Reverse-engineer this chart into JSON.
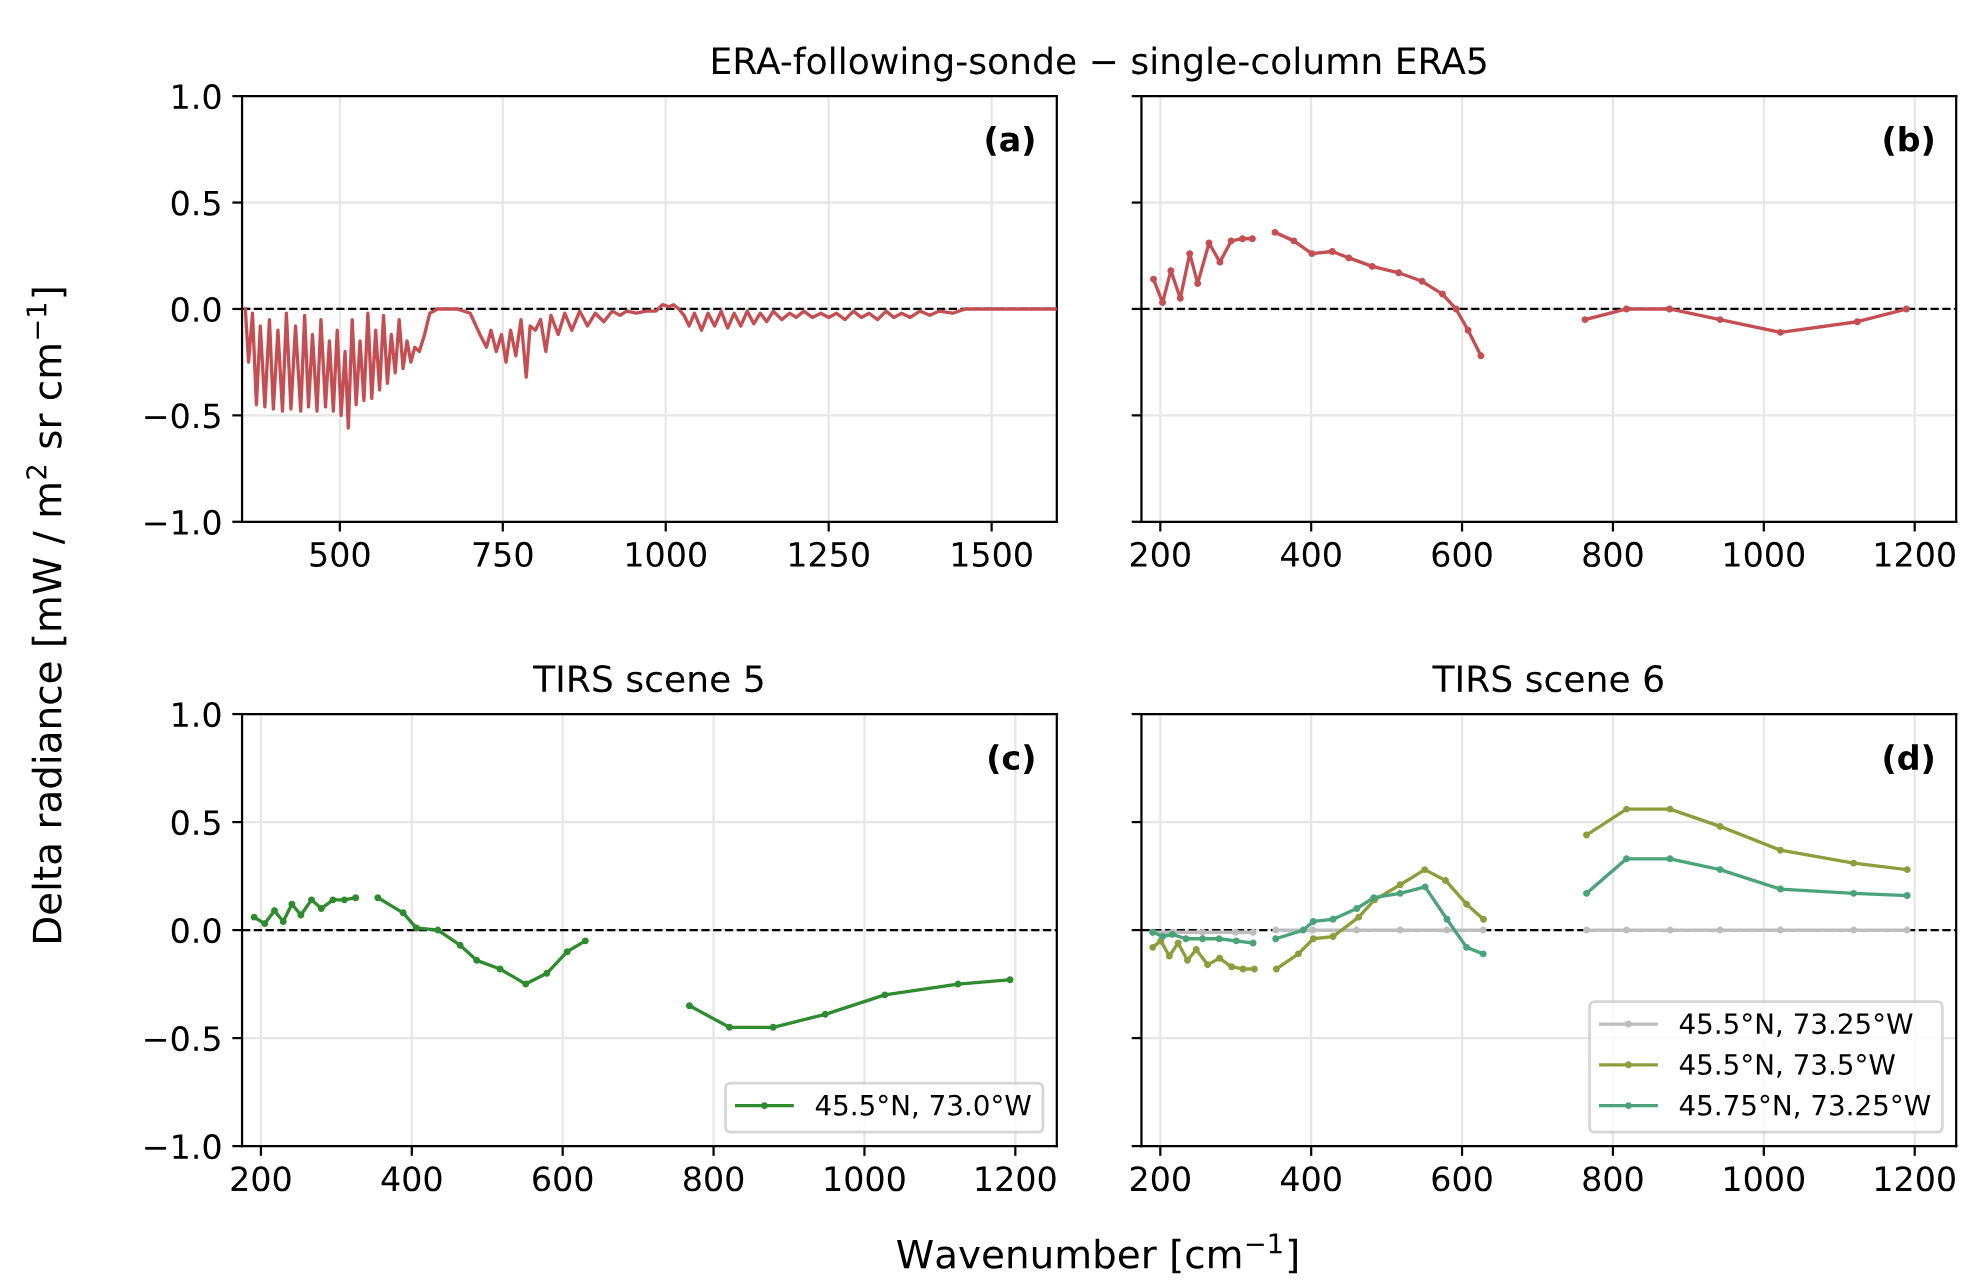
{
  "chart_data": [
    {
      "type": "line",
      "title": "ERA-following-sonde − single-column ERA5",
      "ylabel": "Delta radiance [mW / m$^{2}$ sr cm$^{−1}$]",
      "annotations": [
        "(a)"
      ],
      "xlim": [
        350,
        1600
      ],
      "xticks": [
        500,
        750,
        1000,
        1250,
        1500
      ],
      "ylim": [
        -1.0,
        1.0
      ],
      "yticks": [
        {
          "value": -1.0,
          "label": "−1.0"
        },
        {
          "value": -0.5,
          "label": "−0.5"
        },
        {
          "value": 0.0,
          "label": "0.0"
        },
        {
          "value": 0.5,
          "label": "0.5"
        },
        {
          "value": 1.0,
          "label": "1.0"
        }
      ],
      "grid": true,
      "marker": "none",
      "line_style": "solid",
      "ref_lines": [
        {
          "axis": "y",
          "value": 0,
          "color": "#000000",
          "line_style": "dashed"
        }
      ],
      "series": [
        {
          "color": "#c44e52",
          "x": [
            355,
            360,
            366,
            372,
            378,
            385,
            392,
            398,
            405,
            412,
            418,
            425,
            432,
            440,
            446,
            452,
            458,
            465,
            471,
            478,
            484,
            490,
            496,
            502,
            508,
            513,
            519,
            525,
            531,
            537,
            543,
            549,
            555,
            561,
            567,
            573,
            579,
            585,
            591,
            597,
            603,
            609,
            615,
            622,
            630,
            638,
            650,
            680,
            700,
            715,
            725,
            732,
            740,
            748,
            755,
            762,
            770,
            778,
            786,
            792,
            800,
            808,
            816,
            824,
            835,
            845,
            856,
            868,
            880,
            892,
            905,
            918,
            930,
            940,
            955,
            970,
            985,
            995,
            1005,
            1012,
            1020,
            1028,
            1036,
            1044,
            1055,
            1065,
            1075,
            1085,
            1095,
            1105,
            1115,
            1125,
            1135,
            1145,
            1155,
            1165,
            1178,
            1190,
            1200,
            1212,
            1225,
            1238,
            1250,
            1262,
            1275,
            1288,
            1300,
            1312,
            1325,
            1338,
            1350,
            1362,
            1375,
            1390,
            1405,
            1420,
            1440,
            1460,
            1500,
            1550,
            1600
          ],
          "values": [
            0.0,
            -0.25,
            -0.02,
            -0.45,
            -0.08,
            -0.46,
            -0.05,
            -0.47,
            -0.1,
            -0.48,
            -0.02,
            -0.47,
            -0.08,
            -0.48,
            -0.03,
            -0.46,
            -0.12,
            -0.48,
            -0.05,
            -0.46,
            -0.15,
            -0.48,
            -0.1,
            -0.5,
            -0.2,
            -0.56,
            -0.05,
            -0.45,
            -0.15,
            -0.43,
            -0.02,
            -0.42,
            -0.1,
            -0.38,
            -0.03,
            -0.35,
            -0.12,
            -0.3,
            -0.05,
            -0.28,
            -0.15,
            -0.25,
            -0.18,
            -0.2,
            -0.12,
            -0.02,
            0.0,
            0.0,
            -0.02,
            -0.12,
            -0.18,
            -0.1,
            -0.2,
            -0.12,
            -0.25,
            -0.1,
            -0.22,
            -0.05,
            -0.32,
            -0.08,
            -0.1,
            -0.05,
            -0.2,
            -0.03,
            -0.12,
            -0.02,
            -0.1,
            -0.01,
            -0.08,
            -0.02,
            -0.06,
            -0.01,
            -0.03,
            -0.01,
            -0.02,
            -0.01,
            -0.01,
            0.02,
            0.01,
            0.02,
            0.0,
            -0.03,
            -0.08,
            -0.02,
            -0.1,
            -0.02,
            -0.08,
            -0.01,
            -0.09,
            -0.02,
            -0.08,
            -0.01,
            -0.07,
            -0.02,
            -0.06,
            -0.01,
            -0.05,
            -0.02,
            -0.04,
            -0.01,
            -0.04,
            -0.02,
            -0.04,
            -0.02,
            -0.05,
            -0.01,
            -0.04,
            -0.02,
            -0.05,
            -0.01,
            -0.04,
            -0.02,
            -0.04,
            -0.01,
            -0.03,
            -0.01,
            -0.02,
            0.0,
            0.0,
            0.0,
            0.0
          ]
        }
      ]
    },
    {
      "type": "line",
      "annotations": [
        "(b)"
      ],
      "xlim": [
        175,
        1255
      ],
      "xticks": [
        200,
        400,
        600,
        800,
        1000,
        1200
      ],
      "ylim": [
        -1.0,
        1.0
      ],
      "yticks": [
        -1.0,
        -0.5,
        0.0,
        0.5,
        1.0
      ],
      "tick_labels": "x",
      "grid": true,
      "marker": "circle",
      "line_style": "solid",
      "ref_lines": [
        {
          "axis": "y",
          "value": 0,
          "color": "#000000",
          "line_style": "dashed"
        }
      ],
      "series": [
        {
          "color": "#c44e52",
          "x": [
            191,
            203,
            214,
            226.5,
            239,
            249.6,
            264.6,
            279,
            294,
            309,
            322,
            337,
            352,
            377,
            401,
            428,
            450,
            481,
            516,
            547,
            574,
            592,
            608,
            625,
            700,
            763,
            818,
            875,
            942,
            1022,
            1124,
            1189
          ],
          "values": [
            0.14,
            0.03,
            0.18,
            0.05,
            0.26,
            0.12,
            0.31,
            0.22,
            0.32,
            0.33,
            0.33,
            null,
            0.36,
            0.32,
            0.26,
            0.27,
            0.24,
            0.2,
            0.17,
            0.13,
            0.07,
            0.0,
            -0.1,
            -0.22,
            null,
            -0.05,
            0.0,
            0.0,
            -0.05,
            -0.11,
            -0.06,
            0.0
          ]
        }
      ]
    },
    {
      "type": "line",
      "title": "TIRS scene 5",
      "xlabel": "Wavenumber [cm$^{−1}$]",
      "annotations": [
        "(c)"
      ],
      "xlim": [
        175,
        1255
      ],
      "xticks": [
        200,
        400,
        600,
        800,
        1000,
        1200
      ],
      "ylim": [
        -1.0,
        1.0
      ],
      "yticks": [
        {
          "value": -1.0,
          "label": "−1.0"
        },
        {
          "value": -0.5,
          "label": "−0.5"
        },
        {
          "value": 0.0,
          "label": "0.0"
        },
        {
          "value": 0.5,
          "label": "0.5"
        },
        {
          "value": 1.0,
          "label": "1.0"
        }
      ],
      "grid": true,
      "marker": "circle",
      "line_style": "solid",
      "legend": "bottom right",
      "ref_lines": [
        {
          "axis": "y",
          "value": 0,
          "color": "#000000",
          "line_style": "dashed"
        }
      ],
      "series": [
        {
          "name": "45.5°N, 73.0°W",
          "color": "#2e8b2e",
          "x": [
            191,
            205,
            218,
            229.5,
            241,
            253,
            267,
            280,
            295.5,
            310.6,
            325.6,
            340,
            355,
            388.5,
            406,
            434.6,
            464,
            486,
            517,
            551,
            579,
            606,
            630,
            700,
            768,
            821,
            879,
            948,
            1027,
            1124,
            1193
          ],
          "values": [
            0.06,
            0.03,
            0.09,
            0.04,
            0.12,
            0.07,
            0.14,
            0.1,
            0.14,
            0.14,
            0.15,
            null,
            0.15,
            0.08,
            0.01,
            0.0,
            -0.07,
            -0.14,
            -0.18,
            -0.25,
            -0.2,
            -0.1,
            -0.05,
            null,
            -0.35,
            -0.45,
            -0.45,
            -0.39,
            -0.3,
            -0.25,
            -0.23
          ]
        }
      ]
    },
    {
      "type": "line",
      "title": "TIRS scene 6",
      "annotations": [
        "(d)"
      ],
      "xlim": [
        175,
        1255
      ],
      "xticks": [
        200,
        400,
        600,
        800,
        1000,
        1200
      ],
      "ylim": [
        -1.0,
        1.0
      ],
      "yticks": [
        -1.0,
        -0.5,
        0.0,
        0.5,
        1.0
      ],
      "tick_labels": "x",
      "grid": true,
      "marker": "circle",
      "line_style": "solid",
      "legend": "bottom right",
      "ref_lines": [
        {
          "axis": "y",
          "value": 0,
          "color": "#000000",
          "line_style": "dashed"
        }
      ],
      "series": [
        {
          "name": "45.5°N, 73.25°W",
          "color": "#bdbdbd",
          "x": [
            190,
            216,
            256,
            300,
            323,
            338,
            353,
            402,
            460,
            518,
            580,
            628,
            700,
            765,
            818,
            876,
            942,
            1022,
            1119,
            1190
          ],
          "values": [
            -0.01,
            -0.01,
            -0.01,
            -0.01,
            -0.01,
            null,
            0.0,
            0.0,
            0.0,
            0.0,
            0.0,
            0.0,
            null,
            0.0,
            0.0,
            0.0,
            0.0,
            0.0,
            0.0,
            0.0
          ]
        },
        {
          "name": "45.5°N, 73.5°W",
          "color": "#8c9e3c",
          "x": [
            190,
            200.6,
            212,
            223.6,
            236,
            247.6,
            262.7,
            278.6,
            294.5,
            309.6,
            324.7,
            338,
            353.9,
            383,
            402.8,
            429,
            463,
            484,
            518,
            550.6,
            578,
            606,
            628.4,
            700,
            765,
            818,
            875.6,
            942,
            1022,
            1119,
            1190
          ],
          "values": [
            -0.08,
            -0.05,
            -0.12,
            -0.06,
            -0.14,
            -0.09,
            -0.16,
            -0.13,
            -0.17,
            -0.18,
            -0.18,
            null,
            -0.18,
            -0.11,
            -0.04,
            -0.03,
            0.06,
            0.14,
            0.21,
            0.28,
            0.23,
            0.12,
            0.05,
            null,
            0.44,
            0.56,
            0.56,
            0.48,
            0.37,
            0.31,
            0.28
          ]
        },
        {
          "name": "45.75°N, 73.25°W",
          "color": "#4aa37a",
          "x": [
            190,
            203,
            216,
            234,
            256,
            278,
            300.7,
            323,
            338,
            353,
            389.5,
            402.8,
            429,
            460.5,
            483,
            518,
            551,
            580,
            606,
            628,
            700,
            765,
            818,
            875.6,
            942,
            1022,
            1119,
            1190
          ],
          "values": [
            -0.01,
            -0.03,
            -0.02,
            -0.04,
            -0.04,
            -0.04,
            -0.05,
            -0.06,
            null,
            -0.04,
            0.0,
            0.04,
            0.05,
            0.1,
            0.15,
            0.17,
            0.2,
            0.05,
            -0.08,
            -0.11,
            null,
            0.17,
            0.33,
            0.33,
            0.28,
            0.19,
            0.17,
            0.16
          ]
        }
      ]
    }
  ]
}
